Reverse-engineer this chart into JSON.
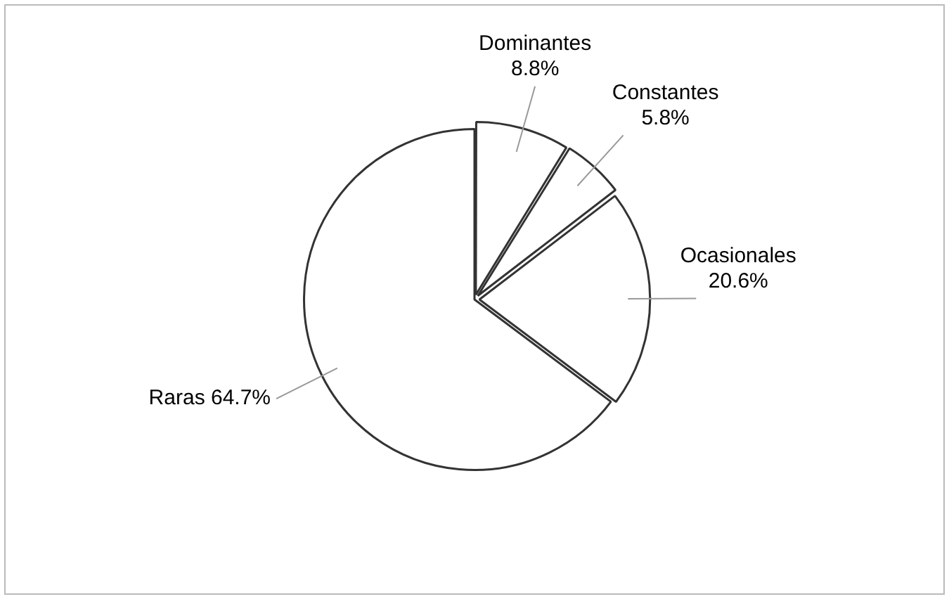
{
  "chart_data": {
    "type": "pie",
    "categories": [
      "Dominantes",
      "Constantes",
      "Ocasionales",
      "Raras"
    ],
    "values": [
      8.8,
      5.8,
      20.6,
      64.7
    ],
    "value_labels": [
      "8.8%",
      "5.8%",
      "20.6%",
      "64.7%"
    ],
    "colors": [
      "#ffffff",
      "#ffffff",
      "#ffffff",
      "#ffffff"
    ],
    "legend": false
  }
}
